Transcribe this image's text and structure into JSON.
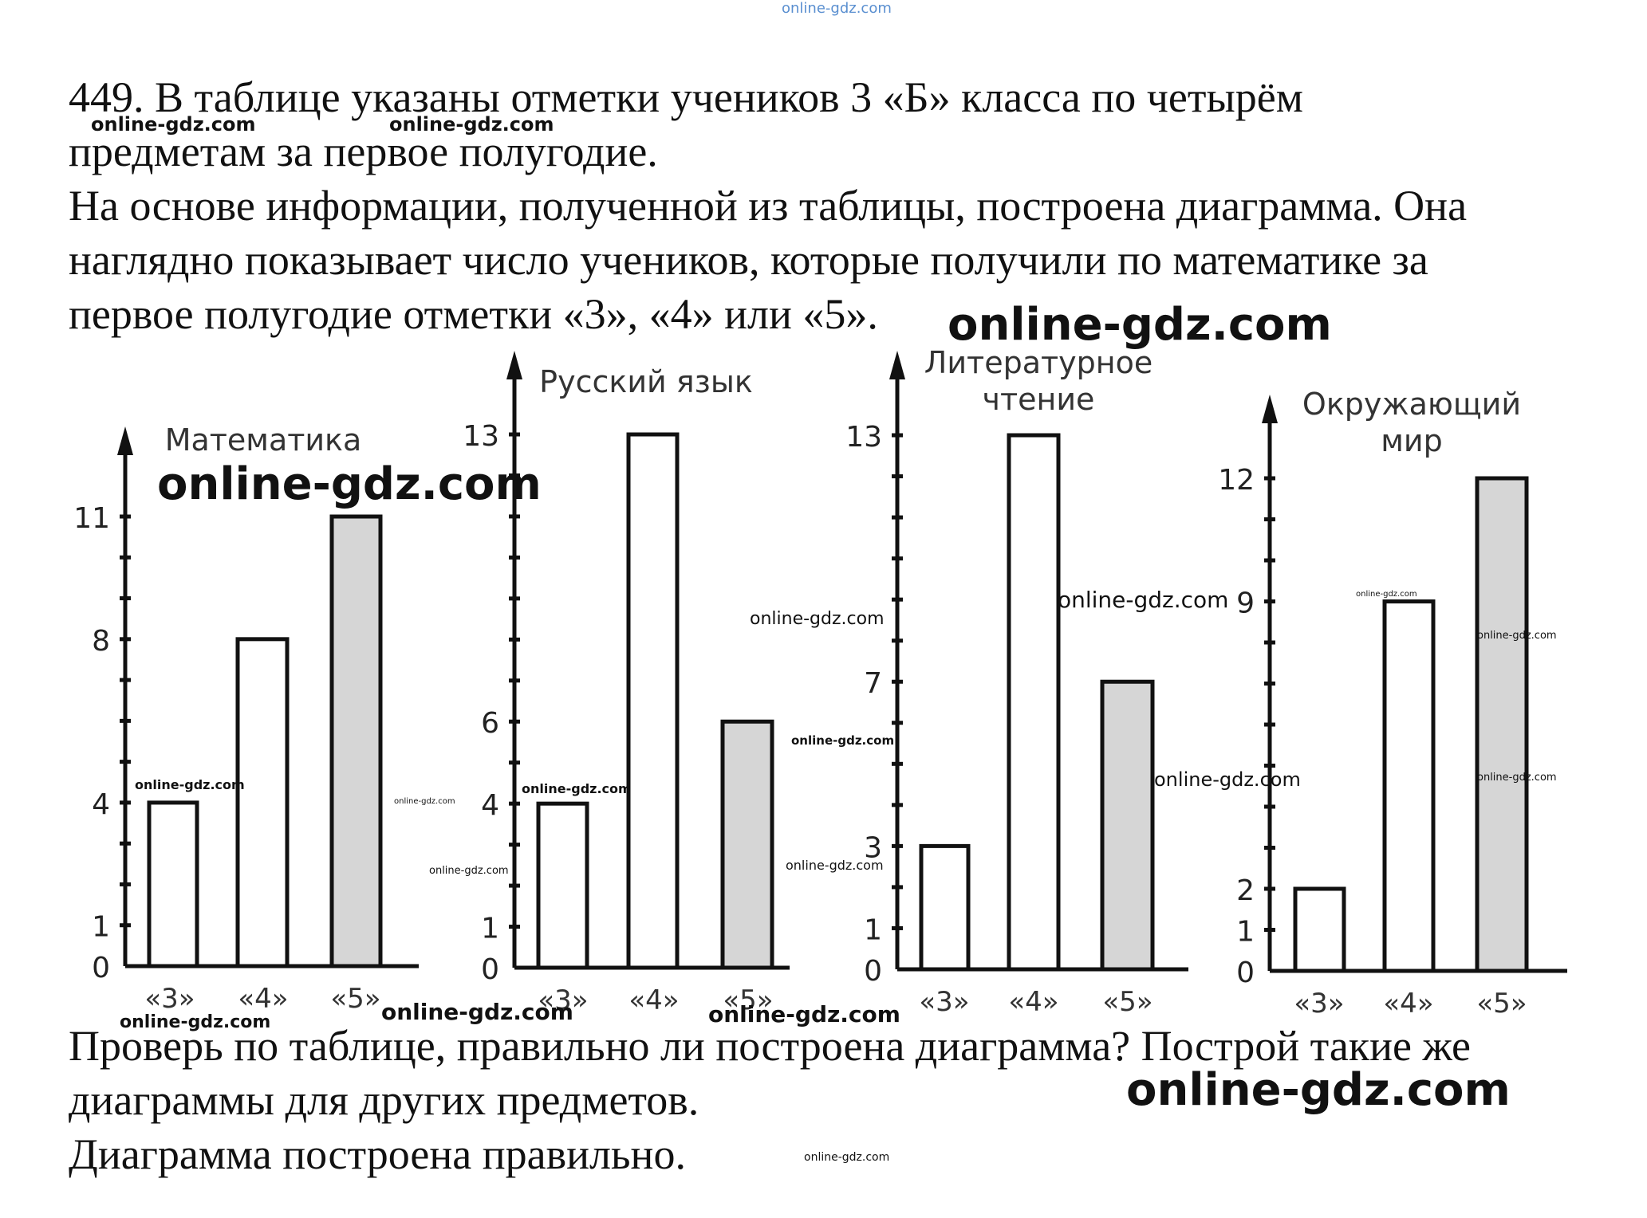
{
  "header_watermark": "online-gdz.com",
  "intro_lines": [
    "449. В таблице указаны отметки учеников 3 «Б» класса по четырём",
    "предметам за первое полугодие.",
    "На основе информации, полученной из таблицы, построена диаграмма. Она",
    "наглядно показывает число учеников, которые получили по математике за",
    "первое полугодие отметки «3», «4» или «5»."
  ],
  "outro_lines": [
    "Проверь по таблице, правильно ли построена диаграмма? Построй такие же",
    "диаграммы для других предметов.",
    "Диаграмма построена правильно."
  ],
  "colors": {
    "bar_white": "#ffffff",
    "bar_highlight": "#d6d6d6",
    "ink": "#111111"
  },
  "chart_data": [
    {
      "type": "bar",
      "title": "Математика",
      "categories": [
        "«3»",
        "«4»",
        "«5»"
      ],
      "values": [
        4,
        8,
        11
      ],
      "ytick_labels": [
        "0",
        "1",
        "4",
        "8",
        "11"
      ],
      "ytick_values": [
        0,
        1,
        4,
        8,
        11
      ],
      "ymax": 11,
      "highlight_index": 2,
      "grid": false
    },
    {
      "type": "bar",
      "title": "Русский язык",
      "categories": [
        "«3»",
        "«4»",
        "«5»"
      ],
      "values": [
        4,
        13,
        6
      ],
      "ytick_labels": [
        "0",
        "1",
        "4",
        "6",
        "13"
      ],
      "ytick_values": [
        0,
        1,
        4,
        6,
        13
      ],
      "ymax": 13,
      "highlight_index": 2,
      "grid": false
    },
    {
      "type": "bar",
      "title": "Литературное чтение",
      "categories": [
        "«3»",
        "«4»",
        "«5»"
      ],
      "values": [
        3,
        13,
        7
      ],
      "ytick_labels": [
        "0",
        "1",
        "3",
        "7",
        "13"
      ],
      "ytick_values": [
        0,
        1,
        3,
        7,
        13
      ],
      "ymax": 13,
      "highlight_index": 2,
      "grid": false
    },
    {
      "type": "bar",
      "title": "Окружающий мир",
      "categories": [
        "«3»",
        "«4»",
        "«5»"
      ],
      "values": [
        2,
        9,
        12
      ],
      "ytick_labels": [
        "0",
        "1",
        "2",
        "9",
        "12"
      ],
      "ytick_values": [
        0,
        1,
        2,
        9,
        12
      ],
      "ymax": 12,
      "highlight_index": 2,
      "grid": false
    }
  ],
  "watermarks": [
    "online-gdz.com",
    "online-gdz.com",
    "online-gdz.com",
    "online-gdz.com",
    "online-gdz.com",
    "online-gdz.com",
    "online-gdz.com",
    "online-gdz.com",
    "online-gdz.com",
    "online-gdz.com",
    "online-gdz.com",
    "online-gdz.com",
    "online-gdz.com",
    "online-gdz.com",
    "online-gdz.com",
    "online-gdz.com",
    "online-gdz.com",
    "online-gdz.com",
    "online-gdz.com",
    "online-gdz.com",
    "online-gdz.com"
  ]
}
